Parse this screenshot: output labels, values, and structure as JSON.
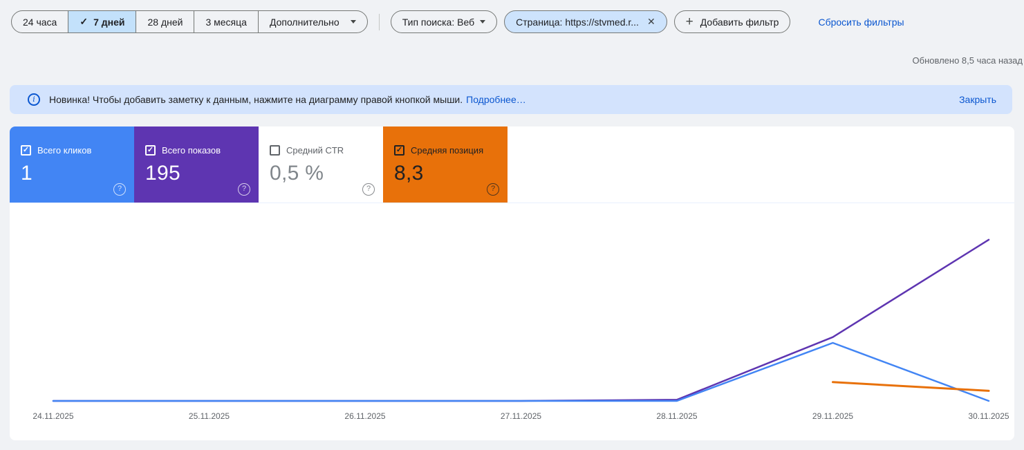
{
  "toolbar": {
    "date_ranges": [
      {
        "label": "24 часа",
        "selected": false
      },
      {
        "label": "7 дней",
        "selected": true
      },
      {
        "label": "28 дней",
        "selected": false
      },
      {
        "label": "3 месяца",
        "selected": false
      }
    ],
    "more_button": "Дополнительно",
    "search_type_chip": "Тип поиска: Веб",
    "page_chip": "Страница: https://stvmed.r...",
    "add_filter_button": "Добавить фильтр",
    "reset_filters_link": "Сбросить фильтры"
  },
  "updated_text": "Обновлено 8,5 часа назад",
  "banner": {
    "text": "Новинка! Чтобы добавить заметку к данным, нажмите на диаграмму правой кнопкой мыши.",
    "more_link": "Подробнее…",
    "close_link": "Закрыть"
  },
  "metrics": [
    {
      "label": "Всего кликов",
      "value": "1",
      "checked": true,
      "color": "#4285f4"
    },
    {
      "label": "Всего показов",
      "value": "195",
      "checked": true,
      "color": "#5e35b1"
    },
    {
      "label": "Средний CTR",
      "value": "0,5 %",
      "checked": false,
      "color": "#ffffff"
    },
    {
      "label": "Средняя позиция",
      "value": "8,3",
      "checked": true,
      "color": "#e8710a"
    }
  ],
  "icons": {
    "check": "✓",
    "close": "✕",
    "plus": "+",
    "info": "i",
    "help": "?"
  },
  "colors": {
    "accent_blue": "#0b57d0",
    "banner_bg": "#d3e3fd",
    "selected_range_bg": "#c3e1fb"
  },
  "chart_data": {
    "type": "line",
    "x": [
      "24.11.2025",
      "25.11.2025",
      "26.11.2025",
      "27.11.2025",
      "28.11.2025",
      "29.11.2025",
      "30.11.2025"
    ],
    "series": [
      {
        "name": "Всего кликов",
        "color": "#4285f4",
        "values": [
          0,
          0,
          0,
          0,
          0,
          1,
          0
        ]
      },
      {
        "name": "Всего показов",
        "color": "#5e35b1",
        "values": [
          0,
          0,
          0,
          0,
          1,
          55,
          139
        ]
      },
      {
        "name": "Средняя позиция",
        "color": "#e8710a",
        "axis_inverted": true,
        "values": [
          null,
          null,
          null,
          null,
          null,
          8.0,
          8.4
        ]
      }
    ],
    "grid": false,
    "legend_position": "none"
  }
}
